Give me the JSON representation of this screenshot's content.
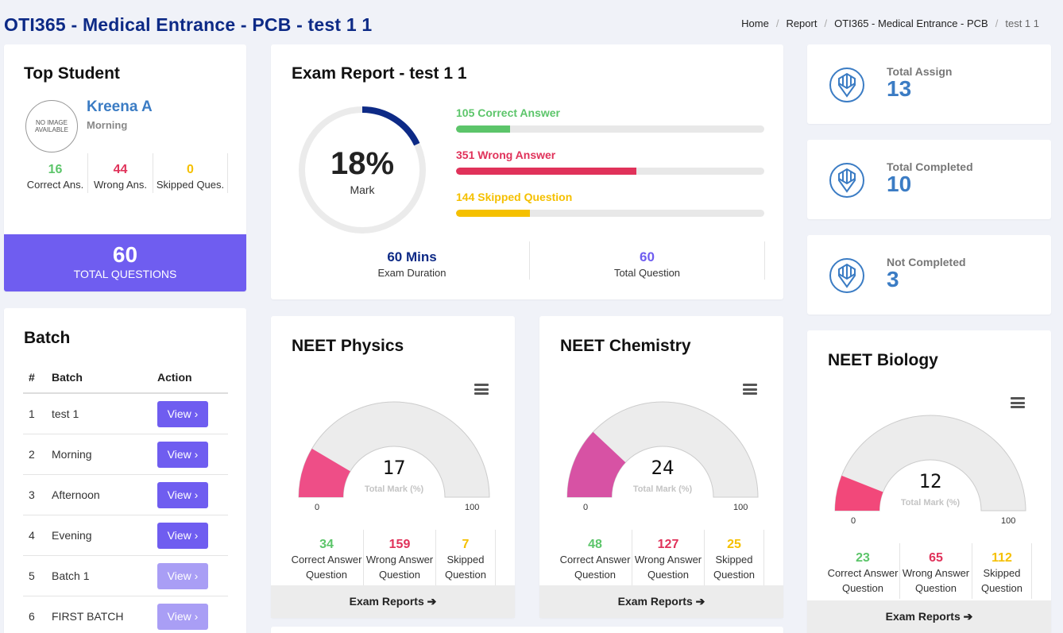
{
  "page": {
    "title": "OTI365 - Medical Entrance - PCB - test 1 1"
  },
  "breadcrumb": [
    "Home",
    "Report",
    "OTI365 - Medical Entrance - PCB",
    "test 1 1"
  ],
  "top_student": {
    "title": "Top Student",
    "avatar_text": "NO IMAGE AVAILABLE",
    "name": "Kreena A",
    "batch": "Morning",
    "correct": "16",
    "correct_label": "Correct Ans.",
    "wrong": "44",
    "wrong_label": "Wrong Ans.",
    "skipped": "0",
    "skipped_label": "Skipped Ques.",
    "total_questions": "60",
    "total_questions_label": "TOTAL QUESTIONS"
  },
  "batch": {
    "title": "Batch",
    "headers": [
      "#",
      "Batch",
      "Action"
    ],
    "rows": [
      {
        "num": "1",
        "name": "test 1",
        "action": "View ›"
      },
      {
        "num": "2",
        "name": "Morning",
        "action": "View ›"
      },
      {
        "num": "3",
        "name": "Afternoon",
        "action": "View ›"
      },
      {
        "num": "4",
        "name": "Evening",
        "action": "View ›"
      },
      {
        "num": "5",
        "name": "Batch 1",
        "action": "View ›"
      },
      {
        "num": "6",
        "name": "FIRST BATCH",
        "action": "View ›"
      }
    ]
  },
  "exam_report": {
    "title": "Exam Report - test 1 1",
    "mark_percent": 18,
    "mark_text": "18%",
    "mark_label": "Mark",
    "bars": [
      {
        "label": "105 Correct Answer",
        "fraction": 0.175,
        "color": "#5cc56a"
      },
      {
        "label": "351 Wrong Answer",
        "fraction": 0.585,
        "color": "#e0325a"
      },
      {
        "label": "144 Skipped Question",
        "fraction": 0.24,
        "color": "#f5c000"
      }
    ],
    "duration": "60 Mins",
    "duration_label": "Exam Duration",
    "total_question": "60",
    "total_question_label": "Total Question"
  },
  "stats": [
    {
      "label": "Total Assign",
      "value": "13"
    },
    {
      "label": "Total Completed",
      "value": "10"
    },
    {
      "label": "Not Completed",
      "value": "3"
    }
  ],
  "subjects": [
    {
      "title": "NEET Physics",
      "mark": 17,
      "mark_text": "17",
      "gauge_label": "Total Mark (%)",
      "min": "0",
      "max": "100",
      "color": "#ee4e87",
      "correct": "34",
      "wrong": "159",
      "skipped": "7",
      "correct_label": [
        "Correct Answer",
        "Question"
      ],
      "wrong_label": [
        "Wrong Answer",
        "Question"
      ],
      "skipped_label": [
        "Skipped",
        "Question"
      ],
      "footer": "Exam Reports"
    },
    {
      "title": "NEET Chemistry",
      "mark": 24,
      "mark_text": "24",
      "gauge_label": "Total Mark (%)",
      "min": "0",
      "max": "100",
      "color": "#d752a4",
      "correct": "48",
      "wrong": "127",
      "skipped": "25",
      "correct_label": [
        "Correct Answer",
        "Question"
      ],
      "wrong_label": [
        "Wrong Answer",
        "Question"
      ],
      "skipped_label": [
        "Skipped",
        "Question"
      ],
      "footer": "Exam Reports"
    },
    {
      "title": "NEET Biology",
      "mark": 12,
      "mark_text": "12",
      "gauge_label": "Total Mark (%)",
      "min": "0",
      "max": "100",
      "color": "#f2487a",
      "correct": "23",
      "wrong": "65",
      "skipped": "112",
      "correct_label": [
        "Correct Answer",
        "Question"
      ],
      "wrong_label": [
        "Wrong Answer",
        "Question"
      ],
      "skipped_label": [
        "Skipped",
        "Question"
      ],
      "footer": "Exam Reports"
    }
  ],
  "colors": {
    "accent": "#6f5df0",
    "title": "#0d2a86",
    "stat_blue": "#3b7cc4"
  }
}
